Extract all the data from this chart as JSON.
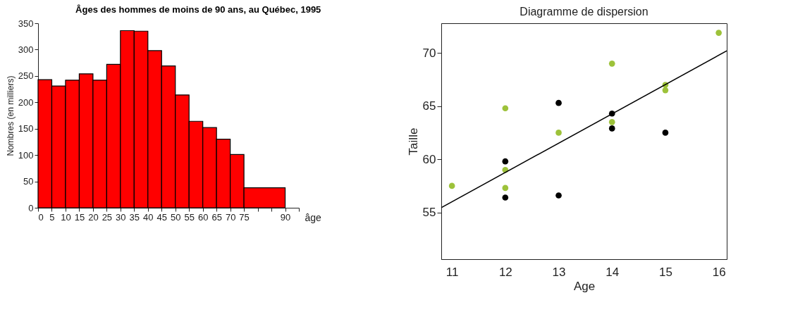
{
  "chart_data": [
    {
      "type": "histogram",
      "title": "Âges des hommes de moins de 90 ans, au Québec, 1995",
      "xlabel": "âge",
      "ylabel": "Nombres (en milliers)",
      "bins": [
        0,
        5,
        10,
        15,
        20,
        25,
        30,
        35,
        40,
        45,
        50,
        55,
        60,
        65,
        70,
        75,
        90
      ],
      "values": [
        243,
        231,
        242,
        254,
        242,
        272,
        336,
        335,
        298,
        269,
        214,
        164,
        152,
        130,
        101,
        38
      ],
      "color": "#ff0000",
      "xlim": [
        0,
        95
      ],
      "xticks": [
        0,
        5,
        10,
        15,
        20,
        25,
        30,
        35,
        40,
        45,
        50,
        55,
        60,
        65,
        70,
        75,
        {
          "value": 80,
          "label": null
        },
        {
          "value": 85,
          "label": null
        },
        90,
        {
          "value": 95,
          "label": null
        }
      ],
      "ylim": [
        0,
        350
      ],
      "yticks": [
        0,
        50,
        100,
        150,
        200,
        250,
        300,
        350
      ],
      "grid": false
    },
    {
      "type": "scatter",
      "title": "Diagramme de dispersion",
      "xlabel": "Age",
      "ylabel": "Taille",
      "series": [
        {
          "color": "#9dc23a",
          "marker": "circle",
          "x": [
            11,
            12,
            12,
            12,
            13,
            14,
            14,
            15,
            15,
            16
          ],
          "values": [
            57.5,
            64.8,
            59,
            57.3,
            62.5,
            69,
            63.5,
            67,
            66.5,
            71.9
          ]
        },
        {
          "color": "#000000",
          "marker": "circle",
          "x": [
            12,
            12,
            13,
            13,
            14,
            14,
            15
          ],
          "values": [
            59.8,
            56.4,
            65.3,
            56.6,
            64.3,
            62.9,
            62.5
          ]
        },
        {
          "type": "line",
          "color": "#000000",
          "x": [
            10.8,
            16.15
          ],
          "values": [
            55.45,
            70.2
          ]
        }
      ],
      "xlim": [
        10.8,
        16.15
      ],
      "xticks": [
        11,
        12,
        13,
        14,
        15,
        16
      ],
      "ylim": [
        50.6,
        72.8
      ],
      "yticks": [
        55,
        60,
        65,
        70
      ],
      "grid": false
    }
  ]
}
